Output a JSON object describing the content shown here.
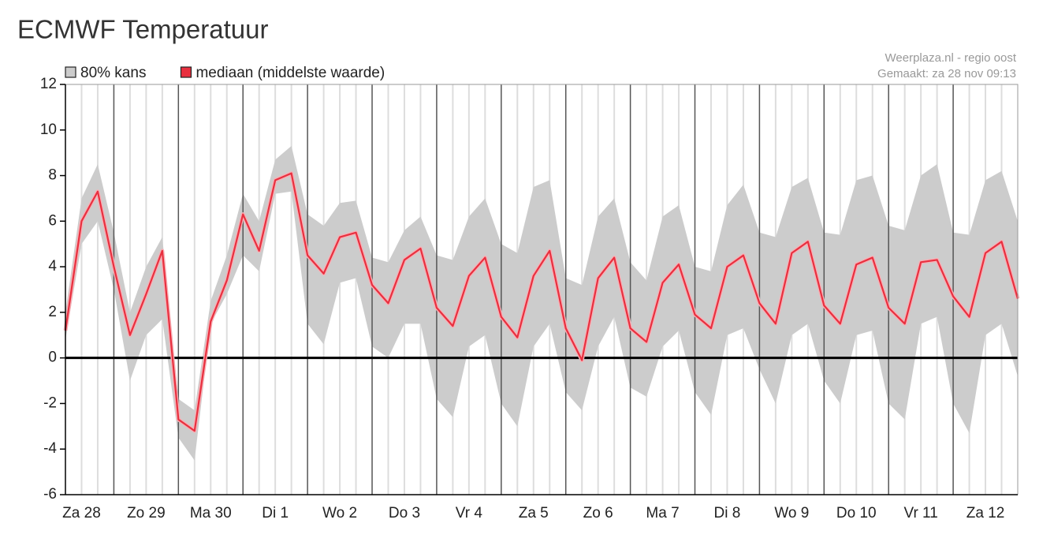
{
  "chart_data": {
    "type": "band-line",
    "title": "ECMWF Temperatuur",
    "annotations": [
      "Weerplaza.nl - regio oost",
      "Gemaakt: za 28 nov 09:13"
    ],
    "x": [
      6,
      12,
      18,
      24,
      30,
      36,
      42,
      48,
      54,
      60,
      66,
      72,
      78,
      84,
      90,
      96,
      102,
      108,
      114,
      120,
      126,
      132,
      138,
      144,
      150,
      156,
      162,
      168,
      174,
      180,
      186,
      192,
      198,
      204,
      210,
      216,
      222,
      228,
      234,
      240,
      246,
      252,
      258,
      264,
      270,
      276,
      282,
      288,
      294,
      300,
      306,
      312,
      318,
      324,
      330,
      336,
      342,
      348,
      354,
      360
    ],
    "series": [
      {
        "name": "80% kans",
        "color": "#cccccc",
        "high": [
          2.0,
          7.0,
          8.5,
          5.5,
          2.0,
          4.0,
          5.3,
          -1.8,
          -2.3,
          2.5,
          4.5,
          7.2,
          6.0,
          8.7,
          9.3,
          6.3,
          5.8,
          6.8,
          6.9,
          4.4,
          4.2,
          5.6,
          6.2,
          4.5,
          4.3,
          6.2,
          7.0,
          5.0,
          4.6,
          7.5,
          7.8,
          3.5,
          3.2,
          6.2,
          7.0,
          4.2,
          3.4,
          6.2,
          6.7,
          4.0,
          3.8,
          6.7,
          7.6,
          5.5,
          5.3,
          7.5,
          7.9,
          5.5,
          5.4,
          7.8,
          8.0,
          5.8,
          5.6,
          8.0,
          8.5,
          5.5,
          5.4,
          7.8,
          8.2,
          6.0
        ],
        "low": [
          0.8,
          5.0,
          6.0,
          3.0,
          -1.0,
          1.0,
          1.7,
          -3.5,
          -4.5,
          1.5,
          2.8,
          4.5,
          3.8,
          7.2,
          7.3,
          1.5,
          0.6,
          3.3,
          3.5,
          0.5,
          0.0,
          1.5,
          1.5,
          -1.8,
          -2.6,
          0.5,
          1.0,
          -2.0,
          -3.0,
          0.5,
          1.5,
          -1.5,
          -2.3,
          0.5,
          1.8,
          -1.3,
          -1.7,
          0.5,
          1.2,
          -1.5,
          -2.5,
          1.0,
          1.3,
          -0.5,
          -2.0,
          1.0,
          1.5,
          -1.0,
          -2.0,
          1.0,
          1.2,
          -2.0,
          -2.7,
          1.5,
          1.8,
          -2.0,
          -3.3,
          1.0,
          1.5,
          -0.8
        ]
      },
      {
        "name": "mediaan (middelste waarde)",
        "color": "#e8303f",
        "values": [
          1.2,
          6.0,
          7.3,
          4.0,
          1.0,
          2.8,
          4.7,
          -2.7,
          -3.2,
          1.6,
          3.4,
          6.3,
          4.7,
          7.8,
          8.1,
          4.5,
          3.7,
          5.3,
          5.5,
          3.2,
          2.4,
          4.3,
          4.8,
          2.2,
          1.4,
          3.6,
          4.4,
          1.8,
          0.9,
          3.6,
          4.7,
          1.3,
          -0.1,
          3.5,
          4.4,
          1.3,
          0.7,
          3.3,
          4.1,
          1.9,
          1.3,
          4.0,
          4.5,
          2.4,
          1.5,
          4.6,
          5.1,
          2.3,
          1.5,
          4.1,
          4.4,
          2.2,
          1.5,
          4.2,
          4.3,
          2.7,
          1.8,
          4.6,
          5.1,
          2.6
        ]
      }
    ],
    "xlim": [
      6,
      360
    ],
    "xticks": [
      {
        "value": 12,
        "label": "Za 28"
      },
      {
        "value": 36,
        "label": "Zo 29"
      },
      {
        "value": 60,
        "label": "Ma 30"
      },
      {
        "value": 84,
        "label": "Di 1"
      },
      {
        "value": 108,
        "label": "Wo 2"
      },
      {
        "value": 132,
        "label": "Do 3"
      },
      {
        "value": 156,
        "label": "Vr 4"
      },
      {
        "value": 180,
        "label": "Za 5"
      },
      {
        "value": 204,
        "label": "Zo 6"
      },
      {
        "value": 228,
        "label": "Ma 7"
      },
      {
        "value": 252,
        "label": "Di 8"
      },
      {
        "value": 276,
        "label": "Wo 9"
      },
      {
        "value": 300,
        "label": "Do 10"
      },
      {
        "value": 324,
        "label": "Vr 11"
      },
      {
        "value": 348,
        "label": "Za 12"
      }
    ],
    "ylim": [
      -6,
      12
    ],
    "yticks": [
      -6,
      -4,
      -2,
      0,
      2,
      4,
      6,
      8,
      10,
      12
    ],
    "legend": "top-left"
  }
}
